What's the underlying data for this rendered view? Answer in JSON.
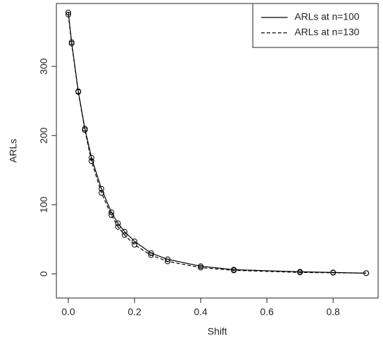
{
  "chart_data": {
    "type": "line",
    "x_label": "Shift",
    "y_label": "ARLs",
    "x": [
      0,
      0.01,
      0.03,
      0.05,
      0.07,
      0.1,
      0.13,
      0.15,
      0.17,
      0.2,
      0.25,
      0.3,
      0.4,
      0.5,
      0.7,
      0.8,
      0.9
    ],
    "series": [
      {
        "name": "ARLs at n=100",
        "color": "#000000",
        "dash": "solid",
        "values": [
          378,
          335,
          264,
          210,
          168,
          123,
          89,
          73,
          61,
          47,
          30,
          21,
          11,
          6,
          3,
          2,
          1
        ]
      },
      {
        "name": "ARLs at n=130",
        "color": "#000000",
        "dash": "dashed",
        "values": [
          375,
          333,
          263,
          208,
          163,
          117,
          85,
          68,
          56,
          42,
          27,
          18,
          9,
          5,
          2,
          1.5,
          1
        ]
      }
    ],
    "xlim": [
      -0.036,
      0.936
    ],
    "ylim": [
      -35,
      391
    ],
    "xticks": [
      {
        "value": 0,
        "label": "0.0"
      },
      0.2,
      0.4,
      0.6,
      0.8
    ],
    "yticks": [
      0,
      100,
      200,
      300
    ],
    "legend": "top-right"
  }
}
